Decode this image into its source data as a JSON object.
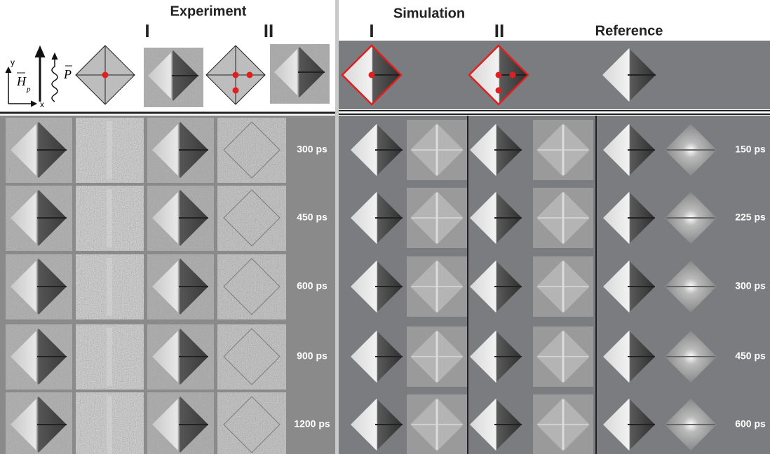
{
  "experiment": {
    "title": "Experiment",
    "labels": [
      "I",
      "II"
    ]
  },
  "simulation": {
    "title": "Simulation",
    "labels": [
      "I",
      "II"
    ]
  },
  "reference": {
    "title": "Reference"
  },
  "delays": [
    "300 ps",
    "450 ps",
    "600 ps",
    "900 ps",
    "1200 ps"
  ],
  "reference_delays": [
    "150 ps",
    "225 ps",
    "300 ps",
    "450 ps",
    "600 ps"
  ],
  "axes": {
    "y": "y",
    "x": "x",
    "field": "H",
    "field_sub": "p",
    "polarization": "P"
  }
}
